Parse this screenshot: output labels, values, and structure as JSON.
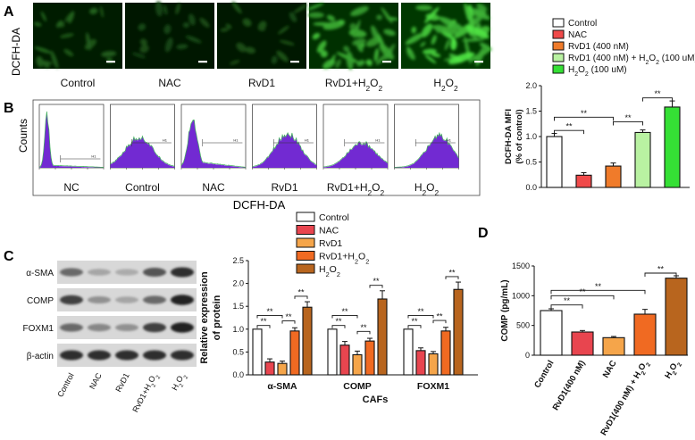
{
  "panel_a": {
    "letter": "A",
    "row_label": "DCFH-DA",
    "labels": [
      "Control",
      "NAC",
      "RvD1",
      "RvD1+H2O2",
      "H2O2"
    ],
    "brightness": [
      0.25,
      0.12,
      0.15,
      0.75,
      0.95
    ]
  },
  "panel_b": {
    "letter": "B",
    "ylabel": "Counts",
    "xlabel": "DCFH-DA",
    "labels": [
      "NC",
      "Control",
      "NAC",
      "RvD1",
      "RvD1+H2O2",
      "H2O2"
    ],
    "gate_label": "H1",
    "colors": {
      "fill": "#6a1fd0",
      "edge": "#3fb05a"
    }
  },
  "chart_data": [
    {
      "panel": "B",
      "type": "bar",
      "ylabel": "DCFH-DA MFI (% of control)",
      "ylim": [
        0,
        2.0
      ],
      "yticks": [
        "0.0",
        "0.5",
        "1.0",
        "1.5",
        "2.0"
      ],
      "legend": [
        "Control",
        "NAC",
        "RvD1 (400 nM)",
        "RvD1 (400 nM) + H2O2 (100 uM)",
        "H2O2 (100 uM)"
      ],
      "colors": [
        "#ffffff",
        "#f04a4a",
        "#f07b2a",
        "#b9f2a2",
        "#35e035"
      ],
      "values": [
        1.0,
        0.24,
        0.42,
        1.08,
        1.58
      ],
      "errors": [
        0.06,
        0.05,
        0.06,
        0.05,
        0.12
      ],
      "significance": "**"
    },
    {
      "panel": "C",
      "type": "bar",
      "ylabel": "Relative expression of protein",
      "xlabel": "CAFs",
      "ylim": [
        0,
        2.5
      ],
      "yticks": [
        "0.0",
        "0.5",
        "1.0",
        "1.5",
        "2.0",
        "2.5"
      ],
      "categories": [
        "α-SMA",
        "COMP",
        "FOXM1"
      ],
      "legend": [
        "Control",
        "NAC",
        "RvD1",
        "RvD1+H2O2",
        "H2O2"
      ],
      "series": [
        {
          "name": "Control",
          "color": "#ffffff",
          "values": [
            1.0,
            1.0,
            1.0
          ],
          "errors": [
            0.0,
            0.0,
            0.0
          ]
        },
        {
          "name": "NAC",
          "color": "#e8454f",
          "values": [
            0.28,
            0.65,
            0.53
          ],
          "errors": [
            0.07,
            0.08,
            0.06
          ]
        },
        {
          "name": "RvD1",
          "color": "#f5a54a",
          "values": [
            0.25,
            0.44,
            0.46
          ],
          "errors": [
            0.05,
            0.08,
            0.05
          ]
        },
        {
          "name": "RvD1+H2O2",
          "color": "#f06a22",
          "values": [
            0.96,
            0.74,
            0.96
          ],
          "errors": [
            0.07,
            0.06,
            0.08
          ]
        },
        {
          "name": "H2O2",
          "color": "#b8651e",
          "values": [
            1.48,
            1.66,
            1.87
          ],
          "errors": [
            0.12,
            0.18,
            0.16
          ]
        }
      ],
      "significance": "**"
    },
    {
      "panel": "D",
      "type": "bar",
      "ylabel": "COMP (pg/mL)",
      "ylim": [
        0,
        1500
      ],
      "yticks": [
        "0",
        "500",
        "1000",
        "1500"
      ],
      "categories": [
        "Control",
        "RvD1(400 nM)",
        "NAC",
        "RvD1(400 nM) + H2O2",
        "H2O2"
      ],
      "colors": [
        "#ffffff",
        "#e8454f",
        "#f5a54a",
        "#f06a22",
        "#b8651e"
      ],
      "values": [
        750,
        390,
        295,
        690,
        1295
      ],
      "errors": [
        30,
        25,
        20,
        80,
        40
      ],
      "significance": "**"
    }
  ],
  "panel_c": {
    "letter": "C",
    "blot_labels": [
      "α-SMA",
      "COMP",
      "FOXM1",
      "β-actin"
    ],
    "lane_labels": [
      "Control",
      "NAC",
      "RvD1",
      "RvD1+H2O2",
      "H2O2"
    ]
  },
  "panel_d": {
    "letter": "D"
  }
}
